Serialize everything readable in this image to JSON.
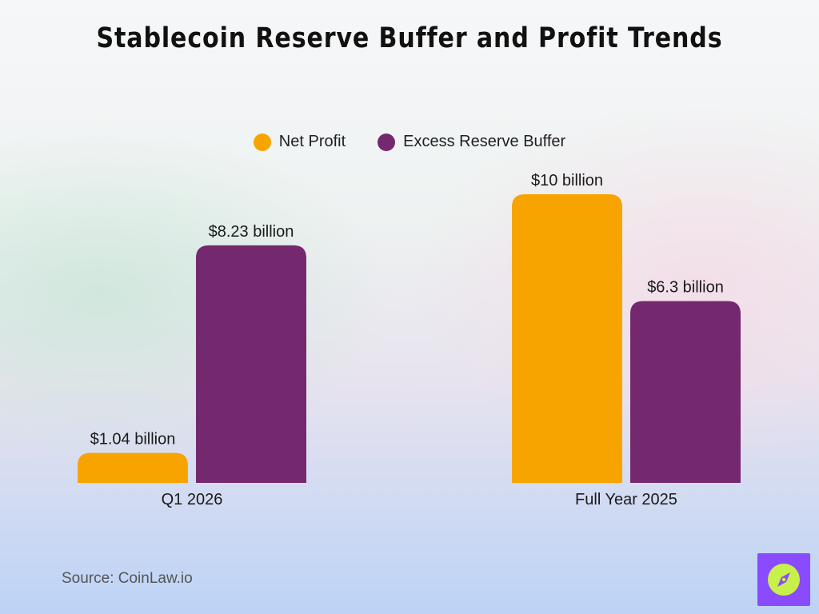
{
  "title": "Stablecoin Reserve Buffer and Profit Trends",
  "legend": {
    "items": [
      {
        "label": "Net Profit",
        "color": "#f8a400"
      },
      {
        "label": "Excess Reserve Buffer",
        "color": "#74296e"
      }
    ]
  },
  "chart_data": {
    "type": "bar",
    "title": "Stablecoin Reserve Buffer and Profit Trends",
    "categories": [
      "Q1 2026",
      "Full Year 2025"
    ],
    "series": [
      {
        "name": "Net Profit",
        "values": [
          1.04,
          10
        ],
        "labels": [
          "$1.04 billion",
          "$10 billion"
        ],
        "color": "#f8a400"
      },
      {
        "name": "Excess Reserve Buffer",
        "values": [
          8.23,
          6.3
        ],
        "labels": [
          "$8.23 billion",
          "$6.3 billion"
        ],
        "color": "#74296e"
      }
    ],
    "ylim": [
      0,
      10
    ],
    "grid": false,
    "legend_position": "top-center",
    "xlabel": "",
    "ylabel": ""
  },
  "source": "Source: CoinLaw.io",
  "logo": {
    "icon": "compass-icon",
    "bg_color": "#8a4bff",
    "fg_color": "#c8f04a"
  }
}
